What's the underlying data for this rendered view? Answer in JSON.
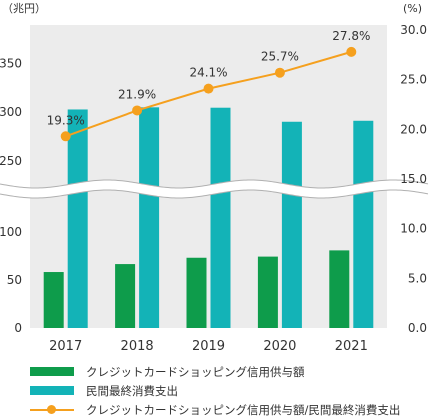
{
  "chart_data": {
    "type": "bar+line",
    "categories": [
      "2017",
      "2018",
      "2019",
      "2020",
      "2021"
    ],
    "left_axis": {
      "unit": "（兆円）",
      "ticks": [
        "0",
        "50",
        "100",
        "250",
        "300",
        "350"
      ],
      "lower_range": [
        0,
        120
      ],
      "upper_range": [
        220,
        380
      ]
    },
    "right_axis": {
      "unit": "(%)",
      "ticks": [
        "0.0",
        "5.0",
        "10.0",
        "15.0",
        "20.0",
        "25.0",
        "30.0"
      ],
      "range": [
        0,
        30
      ]
    },
    "series": [
      {
        "name": "クレジットカードショッピング信用供与額",
        "kind": "bar",
        "axis": "left",
        "color": "#0e9c4b",
        "values": [
          58.4,
          66.7,
          73.3,
          74.5,
          81.0
        ]
      },
      {
        "name": "民間最終消費支出",
        "kind": "bar",
        "axis": "left",
        "color": "#13b3b7",
        "values": [
          302.6,
          304.8,
          304.4,
          290.0,
          291.0
        ]
      },
      {
        "name": "クレジットカードショッピング信用供与額/民間最終消費支出",
        "kind": "line",
        "axis": "right",
        "color": "#f5a01e",
        "values": [
          19.3,
          21.9,
          24.1,
          25.7,
          27.8
        ],
        "labels": [
          "19.3%",
          "21.9%",
          "24.1%",
          "25.7%",
          "27.8%"
        ]
      }
    ],
    "axis_break": true,
    "grid": false,
    "legend_position": "bottom"
  }
}
